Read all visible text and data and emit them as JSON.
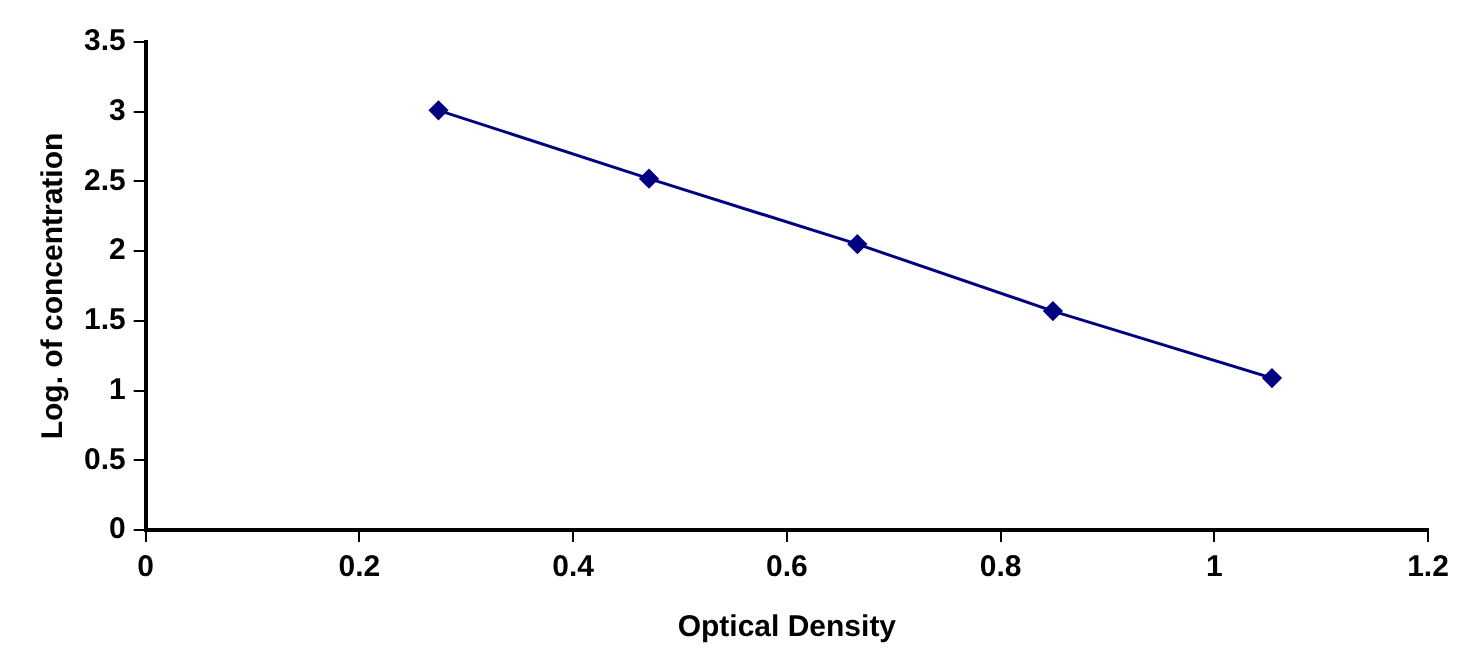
{
  "chart_data": {
    "type": "line",
    "xlabel": "Optical Density",
    "ylabel": "Log. of concentration",
    "x": [
      0.274,
      0.471,
      0.666,
      0.849,
      1.054
    ],
    "series": [
      {
        "color": "#000080",
        "values": [
          3.01,
          2.52,
          2.05,
          1.57,
          1.09
        ]
      }
    ],
    "xlim": [
      0,
      1.2
    ],
    "xticks": [
      0,
      0.2,
      0.4,
      0.6,
      0.8,
      1,
      1.2
    ],
    "ylim": [
      0,
      3.5
    ],
    "yticks": [
      0,
      0.5,
      1,
      1.5,
      2,
      2.5,
      3,
      3.5
    ],
    "grid": false,
    "legend": false,
    "marker": "diamond",
    "line_style": "solid"
  }
}
